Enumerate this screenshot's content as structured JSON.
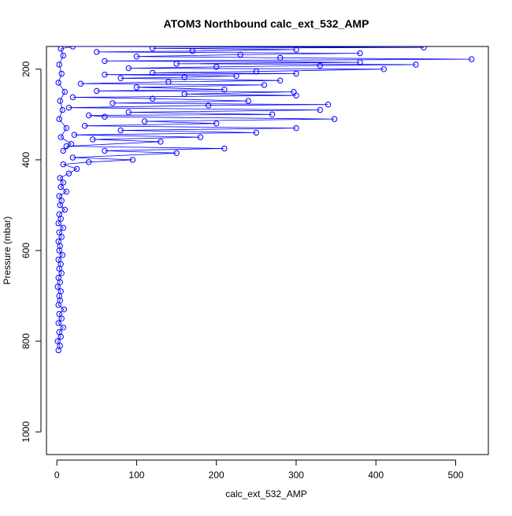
{
  "chart_data": {
    "type": "scatter",
    "title": "ATOM3 Northbound calc_ext_532_AMP",
    "xlabel": "calc_ext_532_AMP",
    "ylabel": "Pressure (mbar)",
    "xlim": [
      -13,
      541
    ],
    "ylim": [
      1050,
      150
    ],
    "y_reversed": true,
    "x_ticks": [
      0,
      100,
      200,
      300,
      400,
      500
    ],
    "y_ticks": [
      200,
      400,
      600,
      800,
      1000
    ],
    "grid": false,
    "legend": "none",
    "series": [
      {
        "color": "#0000ff",
        "marker": "open-circle",
        "connected": true,
        "points": [
          [
            2,
            820
          ],
          [
            4,
            810
          ],
          [
            1,
            800
          ],
          [
            5,
            790
          ],
          [
            3,
            780
          ],
          [
            8,
            770
          ],
          [
            2,
            760
          ],
          [
            6,
            750
          ],
          [
            3,
            740
          ],
          [
            9,
            730
          ],
          [
            2,
            720
          ],
          [
            4,
            710
          ],
          [
            3,
            700
          ],
          [
            5,
            690
          ],
          [
            1,
            680
          ],
          [
            4,
            670
          ],
          [
            2,
            660
          ],
          [
            6,
            650
          ],
          [
            3,
            640
          ],
          [
            5,
            630
          ],
          [
            2,
            620
          ],
          [
            7,
            610
          ],
          [
            3,
            600
          ],
          [
            4,
            590
          ],
          [
            2,
            580
          ],
          [
            6,
            570
          ],
          [
            3,
            560
          ],
          [
            8,
            550
          ],
          [
            2,
            540
          ],
          [
            5,
            530
          ],
          [
            3,
            520
          ],
          [
            10,
            510
          ],
          [
            4,
            500
          ],
          [
            6,
            490
          ],
          [
            3,
            480
          ],
          [
            12,
            470
          ],
          [
            5,
            460
          ],
          [
            8,
            450
          ],
          [
            4,
            440
          ],
          [
            15,
            430
          ],
          [
            25,
            420
          ],
          [
            8,
            410
          ],
          [
            40,
            405
          ],
          [
            95,
            400
          ],
          [
            20,
            395
          ],
          [
            150,
            385
          ],
          [
            60,
            380
          ],
          [
            210,
            375
          ],
          [
            12,
            370
          ],
          [
            130,
            360
          ],
          [
            45,
            355
          ],
          [
            180,
            350
          ],
          [
            22,
            345
          ],
          [
            250,
            340
          ],
          [
            80,
            335
          ],
          [
            300,
            330
          ],
          [
            35,
            325
          ],
          [
            200,
            320
          ],
          [
            110,
            315
          ],
          [
            348,
            310
          ],
          [
            60,
            305
          ],
          [
            40,
            302
          ],
          [
            270,
            300
          ],
          [
            90,
            295
          ],
          [
            330,
            290
          ],
          [
            15,
            285
          ],
          [
            190,
            280
          ],
          [
            340,
            278
          ],
          [
            70,
            275
          ],
          [
            240,
            270
          ],
          [
            120,
            265
          ],
          [
            20,
            262
          ],
          [
            300,
            258
          ],
          [
            160,
            255
          ],
          [
            297,
            250
          ],
          [
            50,
            248
          ],
          [
            210,
            245
          ],
          [
            100,
            240
          ],
          [
            260,
            235
          ],
          [
            30,
            232
          ],
          [
            140,
            228
          ],
          [
            280,
            225
          ],
          [
            80,
            220
          ],
          [
            160,
            218
          ],
          [
            225,
            215
          ],
          [
            60,
            212
          ],
          [
            300,
            210
          ],
          [
            120,
            208
          ],
          [
            250,
            205
          ],
          [
            410,
            200
          ],
          [
            90,
            198
          ],
          [
            200,
            195
          ],
          [
            330,
            192
          ],
          [
            450,
            190
          ],
          [
            150,
            188
          ],
          [
            380,
            185
          ],
          [
            60,
            182
          ],
          [
            520,
            178
          ],
          [
            280,
            175
          ],
          [
            100,
            172
          ],
          [
            230,
            168
          ],
          [
            380,
            165
          ],
          [
            50,
            162
          ],
          [
            170,
            160
          ],
          [
            300,
            157
          ],
          [
            120,
            154
          ],
          [
            460,
            152
          ],
          [
            20,
            150
          ],
          [
            5,
            155
          ],
          [
            8,
            170
          ],
          [
            3,
            190
          ],
          [
            6,
            210
          ],
          [
            2,
            230
          ],
          [
            10,
            250
          ],
          [
            4,
            270
          ],
          [
            7,
            290
          ],
          [
            3,
            310
          ],
          [
            12,
            330
          ],
          [
            5,
            350
          ],
          [
            18,
            365
          ],
          [
            8,
            380
          ]
        ]
      }
    ]
  }
}
